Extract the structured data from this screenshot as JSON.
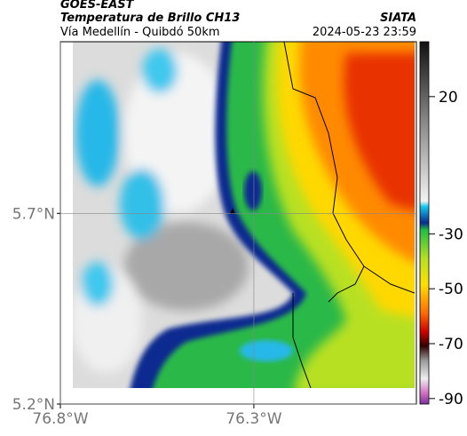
{
  "header": {
    "line1": "GOES-EAST",
    "line2": "Temperatura de Brillo CH13",
    "line3": "Vía Medellín - Quibdó 50km",
    "source": "SIATA",
    "timestamp": "2024-05-23 23:59"
  },
  "map": {
    "xlim": [
      -76.8,
      -75.88
    ],
    "ylim": [
      5.2,
      6.15
    ],
    "xticks": [
      {
        "value": -76.8,
        "label": "76.8°W"
      },
      {
        "value": -76.3,
        "label": "76.3°W"
      }
    ],
    "yticks": [
      {
        "value": 5.2,
        "label": "5.2°N"
      },
      {
        "value": 5.7,
        "label": "5.7°N"
      }
    ],
    "grid": true
  },
  "colorbar": {
    "lim": [
      -92,
      40
    ],
    "ticks": [
      20,
      -30,
      -50,
      -70,
      -90
    ]
  }
}
